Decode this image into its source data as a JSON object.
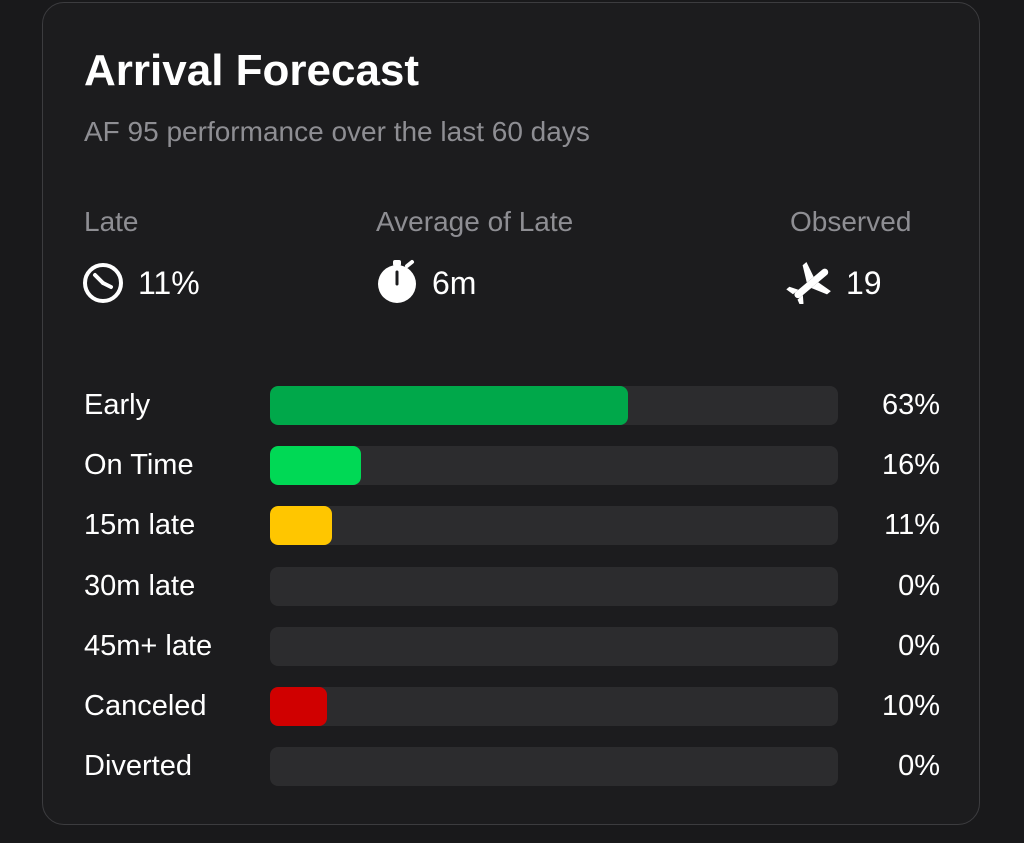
{
  "header": {
    "title": "Arrival Forecast",
    "subtitle": "AF 95 performance over the last 60 days"
  },
  "stats": [
    {
      "label": "Late",
      "value": "11%"
    },
    {
      "label": "Average of Late",
      "value": "6m"
    },
    {
      "label": "Observed",
      "value": "19"
    }
  ],
  "breakdown": {
    "xlim": [
      0,
      100
    ],
    "rows": [
      {
        "label": "Early",
        "value": 63,
        "value_label": "63%",
        "color": "#00a84a"
      },
      {
        "label": "On Time",
        "value": 16,
        "value_label": "16%",
        "color": "#00d955"
      },
      {
        "label": "15m late",
        "value": 11,
        "value_label": "11%",
        "color": "#ffc600"
      },
      {
        "label": "30m late",
        "value": 0,
        "value_label": "0%"
      },
      {
        "label": "45m+ late",
        "value": 0,
        "value_label": "0%"
      },
      {
        "label": "Canceled",
        "value": 10,
        "value_label": "10%",
        "color": "#d00000"
      },
      {
        "label": "Diverted",
        "value": 0,
        "value_label": "0%"
      }
    ]
  }
}
